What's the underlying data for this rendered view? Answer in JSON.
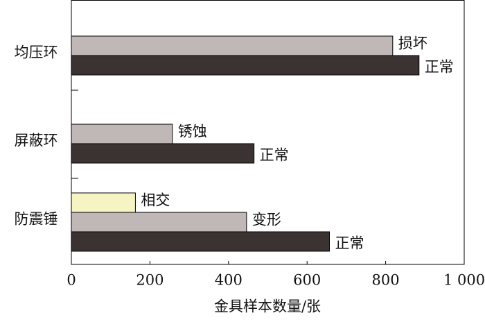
{
  "chart_data": {
    "type": "bar",
    "x_label": "金具样本数量/张",
    "groups": [
      {
        "category": "均压环",
        "bars": [
          {
            "label": "损坏",
            "value": 818,
            "color": "#c0b8b6"
          },
          {
            "label": "正常",
            "value": 885,
            "color": "#3b3331"
          }
        ]
      },
      {
        "category": "屏蔽环",
        "bars": [
          {
            "label": "锈蚀",
            "value": 257,
            "color": "#c0b8b6"
          },
          {
            "label": "正常",
            "value": 465,
            "color": "#3b3331"
          }
        ]
      },
      {
        "category": "防震锤",
        "bars": [
          {
            "label": "相交",
            "value": 163,
            "color": "#f7f4c3"
          },
          {
            "label": "变形",
            "value": 446,
            "color": "#c0b8b6"
          },
          {
            "label": "正常",
            "value": 657,
            "color": "#3b3331"
          }
        ]
      }
    ],
    "xlim": [
      0,
      1000
    ],
    "xticks": [
      0,
      200,
      400,
      600,
      800,
      {
        "value": 1000,
        "label": "1 000"
      }
    ]
  }
}
